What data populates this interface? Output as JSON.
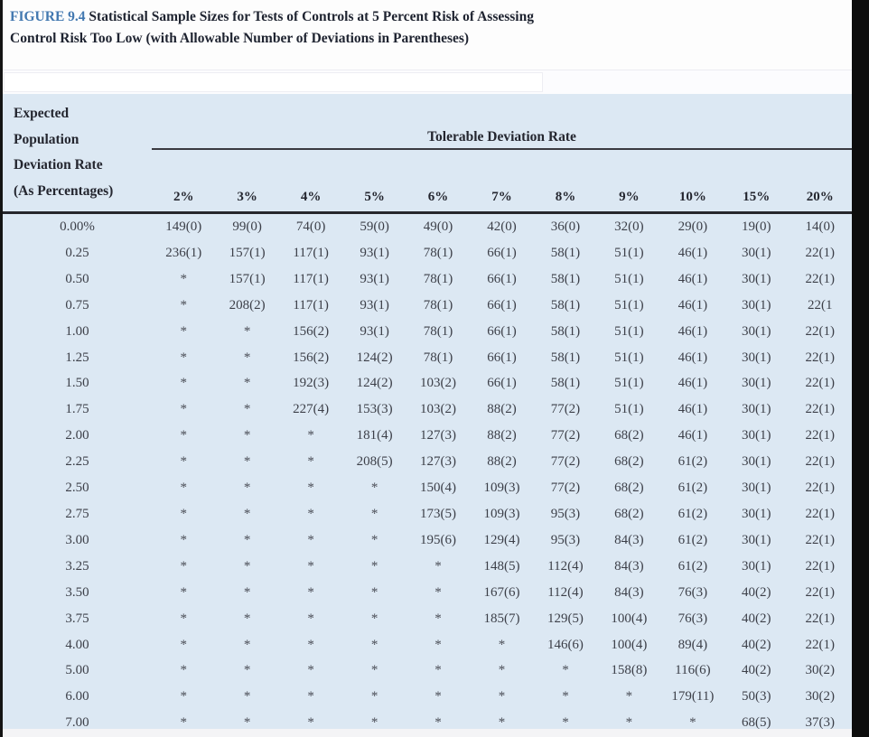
{
  "figure": {
    "label": "FIGURE 9.4",
    "title_rest": " Statistical Sample Sizes for Tests of Controls at 5 Percent Risk of Assessing Control Risk Too Low (with Allowable Number of Deviations in Parentheses)"
  },
  "colors": {
    "table_background": "#dce8f3",
    "figure_label_blue": "#4278b0",
    "rule_dark": "#26262b",
    "page_right_band": "#0d0d0d"
  },
  "table": {
    "row_header_lines": [
      "Expected",
      "Population",
      "Deviation Rate",
      "(As Percentages)"
    ],
    "span_header": "Tolerable Deviation Rate",
    "columns": [
      "2%",
      "3%",
      "4%",
      "5%",
      "6%",
      "7%",
      "8%",
      "9%",
      "10%",
      "15%",
      "20%"
    ],
    "rows": [
      {
        "label": "0.00%",
        "cells": [
          "149(0)",
          "99(0)",
          "74(0)",
          "59(0)",
          "49(0)",
          "42(0)",
          "36(0)",
          "32(0)",
          "29(0)",
          "19(0)",
          "14(0)"
        ]
      },
      {
        "label": "0.25",
        "cells": [
          "236(1)",
          "157(1)",
          "117(1)",
          "93(1)",
          "78(1)",
          "66(1)",
          "58(1)",
          "51(1)",
          "46(1)",
          "30(1)",
          "22(1)"
        ]
      },
      {
        "label": "0.50",
        "cells": [
          "*",
          "157(1)",
          "117(1)",
          "93(1)",
          "78(1)",
          "66(1)",
          "58(1)",
          "51(1)",
          "46(1)",
          "30(1)",
          "22(1)"
        ]
      },
      {
        "label": "0.75",
        "cells": [
          "*",
          "208(2)",
          "117(1)",
          "93(1)",
          "78(1)",
          "66(1)",
          "58(1)",
          "51(1)",
          "46(1)",
          "30(1)",
          "22(1"
        ]
      },
      {
        "label": "1.00",
        "cells": [
          "*",
          "*",
          "156(2)",
          "93(1)",
          "78(1)",
          "66(1)",
          "58(1)",
          "51(1)",
          "46(1)",
          "30(1)",
          "22(1)"
        ]
      },
      {
        "label": "1.25",
        "cells": [
          "*",
          "*",
          "156(2)",
          "124(2)",
          "78(1)",
          "66(1)",
          "58(1)",
          "51(1)",
          "46(1)",
          "30(1)",
          "22(1)"
        ]
      },
      {
        "label": "1.50",
        "cells": [
          "*",
          "*",
          "192(3)",
          "124(2)",
          "103(2)",
          "66(1)",
          "58(1)",
          "51(1)",
          "46(1)",
          "30(1)",
          "22(1)"
        ]
      },
      {
        "label": "1.75",
        "cells": [
          "*",
          "*",
          "227(4)",
          "153(3)",
          "103(2)",
          "88(2)",
          "77(2)",
          "51(1)",
          "46(1)",
          "30(1)",
          "22(1)"
        ]
      },
      {
        "label": "2.00",
        "cells": [
          "*",
          "*",
          "*",
          "181(4)",
          "127(3)",
          "88(2)",
          "77(2)",
          "68(2)",
          "46(1)",
          "30(1)",
          "22(1)"
        ]
      },
      {
        "label": "2.25",
        "cells": [
          "*",
          "*",
          "*",
          "208(5)",
          "127(3)",
          "88(2)",
          "77(2)",
          "68(2)",
          "61(2)",
          "30(1)",
          "22(1)"
        ]
      },
      {
        "label": "2.50",
        "cells": [
          "*",
          "*",
          "*",
          "*",
          "150(4)",
          "109(3)",
          "77(2)",
          "68(2)",
          "61(2)",
          "30(1)",
          "22(1)"
        ]
      },
      {
        "label": "2.75",
        "cells": [
          "*",
          "*",
          "*",
          "*",
          "173(5)",
          "109(3)",
          "95(3)",
          "68(2)",
          "61(2)",
          "30(1)",
          "22(1)"
        ]
      },
      {
        "label": "3.00",
        "cells": [
          "*",
          "*",
          "*",
          "*",
          "195(6)",
          "129(4)",
          "95(3)",
          "84(3)",
          "61(2)",
          "30(1)",
          "22(1)"
        ]
      },
      {
        "label": "3.25",
        "cells": [
          "*",
          "*",
          "*",
          "*",
          "*",
          "148(5)",
          "112(4)",
          "84(3)",
          "61(2)",
          "30(1)",
          "22(1)"
        ]
      },
      {
        "label": "3.50",
        "cells": [
          "*",
          "*",
          "*",
          "*",
          "*",
          "167(6)",
          "112(4)",
          "84(3)",
          "76(3)",
          "40(2)",
          "22(1)"
        ]
      },
      {
        "label": "3.75",
        "cells": [
          "*",
          "*",
          "*",
          "*",
          "*",
          "185(7)",
          "129(5)",
          "100(4)",
          "76(3)",
          "40(2)",
          "22(1)"
        ]
      },
      {
        "label": "4.00",
        "cells": [
          "*",
          "*",
          "*",
          "*",
          "*",
          "*",
          "146(6)",
          "100(4)",
          "89(4)",
          "40(2)",
          "22(1)"
        ]
      },
      {
        "label": "5.00",
        "cells": [
          "*",
          "*",
          "*",
          "*",
          "*",
          "*",
          "*",
          "158(8)",
          "116(6)",
          "40(2)",
          "30(2)"
        ]
      },
      {
        "label": "6.00",
        "cells": [
          "*",
          "*",
          "*",
          "*",
          "*",
          "*",
          "*",
          "*",
          "179(11)",
          "50(3)",
          "30(2)"
        ]
      },
      {
        "label": "7.00",
        "cells": [
          "*",
          "*",
          "*",
          "*",
          "*",
          "*",
          "*",
          "*",
          "*",
          "68(5)",
          "37(3)"
        ]
      }
    ]
  }
}
